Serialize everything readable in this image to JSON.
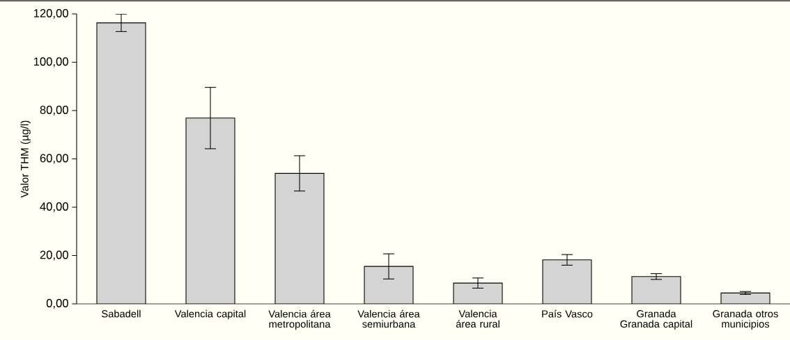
{
  "chart_data": {
    "type": "bar",
    "ylabel": "Valor THM (µg/l)",
    "categories": [
      "Sabadell",
      "Valencia capital",
      "Valencia área metropolitana",
      "Valencia área semiurbana",
      "Valencia área rural",
      "País Vasco",
      "Granada Granada capital",
      "Granada otros municipios"
    ],
    "values": [
      116.3,
      76.9,
      54.0,
      15.5,
      8.6,
      18.2,
      11.3,
      4.5
    ],
    "errors": [
      3.6,
      12.7,
      7.3,
      5.2,
      2.1,
      2.2,
      1.2,
      0.6
    ],
    "color": "#d4d4d4",
    "ylim": [
      0,
      120
    ],
    "yticks": [
      {
        "value": 0,
        "label": "0,00"
      },
      {
        "value": 20,
        "label": "20,00"
      },
      {
        "value": 40,
        "label": "40,00"
      },
      {
        "value": 60,
        "label": "60,00"
      },
      {
        "value": 80,
        "label": "80,00"
      },
      {
        "value": 100,
        "label": "100,00"
      },
      {
        "value": 120,
        "label": "120,00"
      }
    ],
    "grid": false
  }
}
